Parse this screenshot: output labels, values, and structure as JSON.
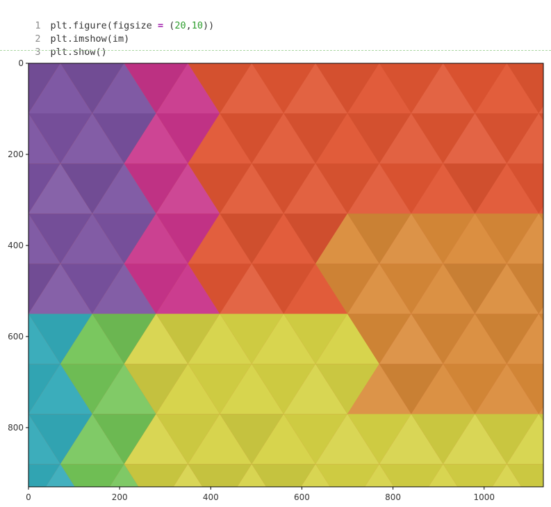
{
  "code_cell": {
    "lines": [
      {
        "number": "1",
        "prefix": "plt.figure(figsize ",
        "op": "=",
        "mid1": " (",
        "n1": "20",
        "sep": ",",
        "n2": "10",
        "suffix": "))"
      },
      {
        "number": "2",
        "text": "plt.imshow(im)"
      },
      {
        "number": "3",
        "text": "plt.show()"
      }
    ]
  },
  "chart_data": {
    "type": "image",
    "x_ticks": [
      {
        "value": 0,
        "label": "0"
      },
      {
        "value": 200,
        "label": "200"
      },
      {
        "value": 400,
        "label": "400"
      },
      {
        "value": 600,
        "label": "600"
      },
      {
        "value": 800,
        "label": "800"
      },
      {
        "value": 1000,
        "label": "1000"
      }
    ],
    "y_ticks": [
      {
        "value": 0,
        "label": "0"
      },
      {
        "value": 200,
        "label": "200"
      },
      {
        "value": 400,
        "label": "400"
      },
      {
        "value": 600,
        "label": "600"
      },
      {
        "value": 800,
        "label": "800"
      }
    ],
    "xlim": [
      0,
      1130
    ],
    "ylim": [
      930,
      0
    ],
    "image": {
      "description_colors": {
        "purple": "#7a52a0",
        "magenta": "#c8348a",
        "red_orange": "#e05532",
        "orange": "#d98a38",
        "teal": "#33a9b8",
        "green": "#73c457",
        "yellow": "#d5d244"
      },
      "row_height": 110,
      "triangle_width": 140
    }
  }
}
